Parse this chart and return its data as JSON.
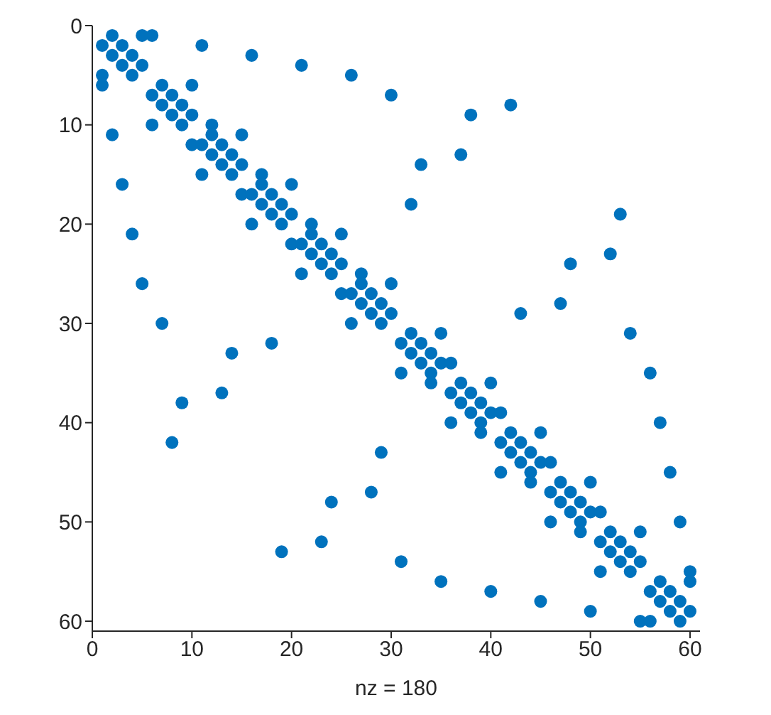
{
  "chart_data": {
    "type": "scatter",
    "xlabel": "nz = 180",
    "x": [
      2,
      5,
      6,
      1,
      3,
      11,
      2,
      4,
      16,
      3,
      5,
      21,
      1,
      4,
      26,
      1,
      7,
      10,
      6,
      8,
      30,
      7,
      9,
      42,
      8,
      10,
      38,
      6,
      9,
      12,
      2,
      12,
      15,
      10,
      11,
      13,
      12,
      14,
      37,
      13,
      15,
      33,
      11,
      14,
      17,
      3,
      17,
      20,
      15,
      16,
      18,
      17,
      19,
      32,
      18,
      20,
      53,
      16,
      19,
      22,
      4,
      22,
      25,
      20,
      21,
      23,
      22,
      24,
      52,
      23,
      25,
      48,
      21,
      24,
      27,
      5,
      27,
      30,
      25,
      26,
      28,
      27,
      29,
      47,
      28,
      30,
      43,
      7,
      26,
      29,
      32,
      35,
      54,
      18,
      31,
      33,
      14,
      32,
      34,
      33,
      35,
      36,
      31,
      34,
      56,
      34,
      37,
      40,
      13,
      36,
      38,
      9,
      37,
      39,
      38,
      40,
      41,
      36,
      39,
      57,
      39,
      42,
      45,
      8,
      41,
      43,
      29,
      42,
      44,
      43,
      45,
      46,
      41,
      44,
      58,
      44,
      47,
      50,
      28,
      46,
      48,
      24,
      47,
      49,
      48,
      50,
      51,
      46,
      49,
      59,
      49,
      52,
      55,
      23,
      51,
      53,
      19,
      52,
      54,
      31,
      53,
      55,
      51,
      54,
      60,
      35,
      57,
      60,
      40,
      56,
      58,
      45,
      57,
      59,
      50,
      58,
      60,
      55,
      56,
      59
    ],
    "values": [
      1,
      1,
      1,
      2,
      2,
      2,
      3,
      3,
      3,
      4,
      4,
      4,
      5,
      5,
      5,
      6,
      6,
      6,
      7,
      7,
      7,
      8,
      8,
      8,
      9,
      9,
      9,
      10,
      10,
      10,
      11,
      11,
      11,
      12,
      12,
      12,
      13,
      13,
      13,
      14,
      14,
      14,
      15,
      15,
      15,
      16,
      16,
      16,
      17,
      17,
      17,
      18,
      18,
      18,
      19,
      19,
      19,
      20,
      20,
      20,
      21,
      21,
      21,
      22,
      22,
      22,
      23,
      23,
      23,
      24,
      24,
      24,
      25,
      25,
      25,
      26,
      26,
      26,
      27,
      27,
      27,
      28,
      28,
      28,
      29,
      29,
      29,
      30,
      30,
      30,
      31,
      31,
      31,
      32,
      32,
      32,
      33,
      33,
      33,
      34,
      34,
      34,
      35,
      35,
      35,
      36,
      36,
      36,
      37,
      37,
      37,
      38,
      38,
      38,
      39,
      39,
      39,
      40,
      40,
      40,
      41,
      41,
      41,
      42,
      42,
      42,
      43,
      43,
      43,
      44,
      44,
      44,
      45,
      45,
      45,
      46,
      46,
      46,
      47,
      47,
      47,
      48,
      48,
      48,
      49,
      49,
      49,
      50,
      50,
      50,
      51,
      51,
      51,
      52,
      52,
      52,
      53,
      53,
      53,
      54,
      54,
      54,
      55,
      55,
      55,
      56,
      56,
      56,
      57,
      57,
      57,
      58,
      58,
      58,
      59,
      59,
      59,
      60,
      60,
      60
    ],
    "color": "#0072bd",
    "marker": "circle",
    "xlim": [
      0,
      61
    ],
    "xticks": [
      0,
      10,
      20,
      30,
      40,
      50,
      60
    ],
    "ylim": [
      61,
      0
    ],
    "yticks": [
      0,
      10,
      20,
      30,
      40,
      50,
      60
    ]
  }
}
